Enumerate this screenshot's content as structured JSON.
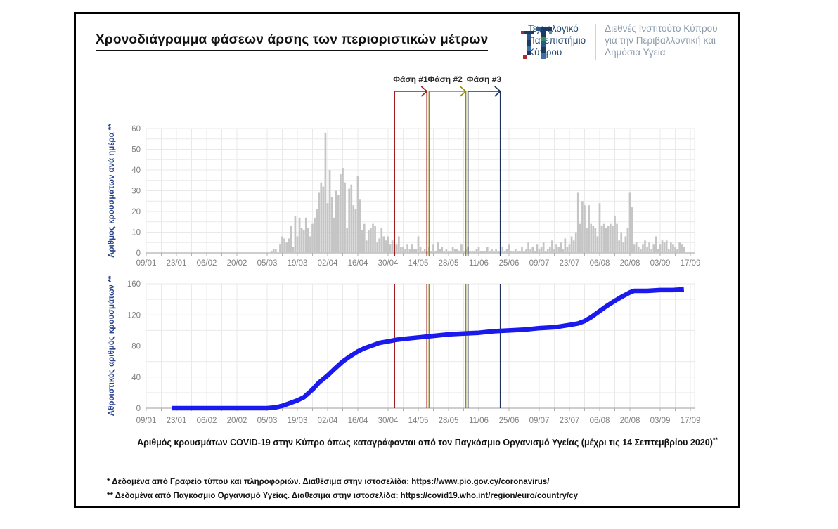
{
  "title": "Χρονοδιάγραμμα φάσεων άρσης των περιοριστικών μέτρων",
  "logo": {
    "university": "Τεχνολογικό\nΠανεπιστήμιο\nΚύπρου",
    "institute": "Διεθνές Ινστιτούτο Κύπρου\nγια την Περιβαλλοντική και\nΔημόσια Υγεία",
    "university_color": "#234a73",
    "institute_color": "#8d9cab"
  },
  "phases": [
    {
      "label": "Φάση #1",
      "color": "#a01b22",
      "start_day": 115,
      "end_day": 130,
      "start_date": "04/05",
      "end_date": "18/05"
    },
    {
      "label": "Φάση #2",
      "color": "#8e8e12",
      "start_day": 131,
      "end_day": 148,
      "start_date": "19/05",
      "end_date": "05/06"
    },
    {
      "label": "Φάση #3",
      "color": "#20335e",
      "start_day": 149,
      "end_day": 164,
      "start_date": "07/06",
      "end_date": "21/06"
    }
  ],
  "chart_data": [
    {
      "type": "bar",
      "ylabel": "Αριθμός κρουσμάτων ανά ημέρα **",
      "bar_color": "#c5c5c5",
      "ylim": [
        0,
        60
      ],
      "y_ticks": [
        0,
        10,
        20,
        30,
        40,
        50,
        60
      ],
      "x_tick_labels": [
        "09/01",
        "23/01",
        "06/02",
        "20/02",
        "05/03",
        "19/03",
        "02/04",
        "16/04",
        "30/04",
        "14/05",
        "28/05",
        "11/06",
        "25/06",
        "09/07",
        "23/07",
        "06/08",
        "20/08",
        "03/09",
        "17/09"
      ],
      "x_tick_interval_days": 14,
      "start_date": "05/03",
      "start_day_offset": 56,
      "values": [
        0,
        0,
        1,
        2,
        2,
        0,
        4,
        8,
        7,
        5,
        7,
        13,
        3,
        18,
        8,
        17,
        12,
        11,
        17,
        12,
        8,
        14,
        17,
        21,
        29,
        34,
        32,
        58,
        24,
        40,
        27,
        17,
        30,
        28,
        38,
        41,
        34,
        12,
        31,
        33,
        23,
        21,
        37,
        26,
        11,
        14,
        6,
        11,
        12,
        14,
        13,
        5,
        7,
        12,
        8,
        6,
        8,
        4,
        6,
        4,
        4,
        8,
        3,
        3,
        2,
        4,
        2,
        4,
        2,
        2,
        8,
        3,
        1,
        2,
        1,
        3,
        1,
        4,
        1,
        5,
        2,
        3,
        1,
        2,
        1,
        1,
        3,
        2,
        2,
        1,
        4,
        1,
        2,
        3,
        1,
        1,
        1,
        2,
        3,
        1,
        1,
        1,
        3,
        1,
        2,
        1,
        2,
        1,
        1,
        3,
        1,
        2,
        4,
        1,
        1,
        2,
        1,
        1,
        3,
        1,
        2,
        5,
        2,
        3,
        1,
        4,
        2,
        3,
        5,
        1,
        2,
        3,
        6,
        2,
        4,
        3,
        5,
        2,
        7,
        3,
        4,
        8,
        6,
        10,
        29,
        14,
        25,
        23,
        12,
        23,
        14,
        13,
        12,
        8,
        24,
        13,
        14,
        12,
        13,
        14,
        13,
        18,
        14,
        6,
        10,
        5,
        8,
        12,
        29,
        22,
        4,
        5,
        3,
        2,
        4,
        6,
        3,
        5,
        2,
        4,
        8,
        2,
        4,
        6,
        5,
        6,
        2,
        5,
        4,
        3,
        2,
        5,
        4,
        3
      ]
    },
    {
      "type": "line",
      "ylabel": "Αθροιστικός αριθμός κρουσμάτων **",
      "line_color": "#1a1aef",
      "ylim": [
        0,
        160
      ],
      "y_ticks": [
        0,
        40,
        80,
        120,
        160
      ],
      "x_tick_labels": [
        "09/01",
        "23/01",
        "06/02",
        "20/02",
        "05/03",
        "19/03",
        "02/04",
        "16/04",
        "30/04",
        "14/05",
        "28/05",
        "11/06",
        "25/06",
        "09/07",
        "23/07",
        "06/08",
        "20/08",
        "03/09",
        "17/09"
      ],
      "x_tick_interval_days": 14,
      "points_day_value": [
        [
          12,
          0
        ],
        [
          56,
          0
        ],
        [
          60,
          1
        ],
        [
          63,
          3
        ],
        [
          66,
          6
        ],
        [
          70,
          10
        ],
        [
          73,
          14
        ],
        [
          77,
          24
        ],
        [
          80,
          33
        ],
        [
          84,
          42
        ],
        [
          87,
          50
        ],
        [
          91,
          60
        ],
        [
          94,
          66
        ],
        [
          98,
          73
        ],
        [
          101,
          77
        ],
        [
          105,
          81
        ],
        [
          108,
          84
        ],
        [
          112,
          86
        ],
        [
          116,
          88
        ],
        [
          119,
          89
        ],
        [
          126,
          91
        ],
        [
          133,
          93
        ],
        [
          140,
          95
        ],
        [
          147,
          96
        ],
        [
          154,
          97
        ],
        [
          161,
          99
        ],
        [
          168,
          100
        ],
        [
          175,
          101
        ],
        [
          182,
          103
        ],
        [
          189,
          104
        ],
        [
          196,
          107
        ],
        [
          200,
          109
        ],
        [
          203,
          112
        ],
        [
          206,
          117
        ],
        [
          210,
          125
        ],
        [
          213,
          131
        ],
        [
          217,
          138
        ],
        [
          220,
          143
        ],
        [
          224,
          149
        ],
        [
          226,
          151
        ],
        [
          232,
          151
        ],
        [
          238,
          152
        ],
        [
          244,
          152
        ],
        [
          249,
          153
        ]
      ]
    }
  ],
  "caption": {
    "text": "Αριθμός κρουσμάτων COVID-19 στην Κύπρο όπως καταγράφονται από τον Παγκόσμιο Οργανισμό Υγείας (μέχρι τις 14 Σεπτεμβρίου 2020)",
    "marker": "**"
  },
  "footnotes": [
    "* Δεδομένα από Γραφείο τύπου και πληροφοριών. Διαθέσιμα στην ιστοσελίδα: https://www.pio.gov.cy/coronavirus/",
    "** Δεδομένα από Παγκόσμιο Οργανισμό Υγείας. Διαθέσιμα στην ιστοσελίδα: https://covid19.who.int/region/euro/country/cy"
  ]
}
